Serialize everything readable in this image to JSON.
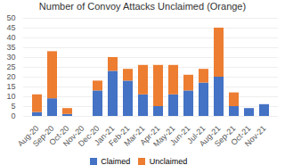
{
  "chart_data": {
    "type": "bar",
    "title": "Number of Convoy Attacks Unclaimed (Orange)",
    "categories": [
      "Aug-20",
      "Sep-20",
      "Oct-20",
      "Nov-20",
      "Dec-20",
      "Jan-21",
      "Feb-21",
      "Mar-21",
      "Apr-21",
      "May-21",
      "Jun-21",
      "Jul-21",
      "Aug-21",
      "Sep-21",
      "Oct-21",
      "Nov-21"
    ],
    "series": [
      {
        "name": "Claimed",
        "color": "#4472c4",
        "values": [
          2,
          9,
          1,
          0,
          13,
          23,
          18,
          11,
          5,
          11,
          13,
          17,
          20,
          5,
          4,
          6
        ]
      },
      {
        "name": "Unclaimed",
        "color": "#ed7d31",
        "values": [
          9,
          24,
          3,
          0,
          5,
          7,
          6,
          15,
          21,
          15,
          8,
          7,
          25,
          7,
          0,
          0
        ]
      }
    ],
    "stacked": true,
    "ylim": [
      0,
      50
    ],
    "yticks": [
      0,
      5,
      10,
      15,
      20,
      25,
      30,
      35,
      40,
      45,
      50
    ],
    "grid": true,
    "legend": "bottom"
  }
}
